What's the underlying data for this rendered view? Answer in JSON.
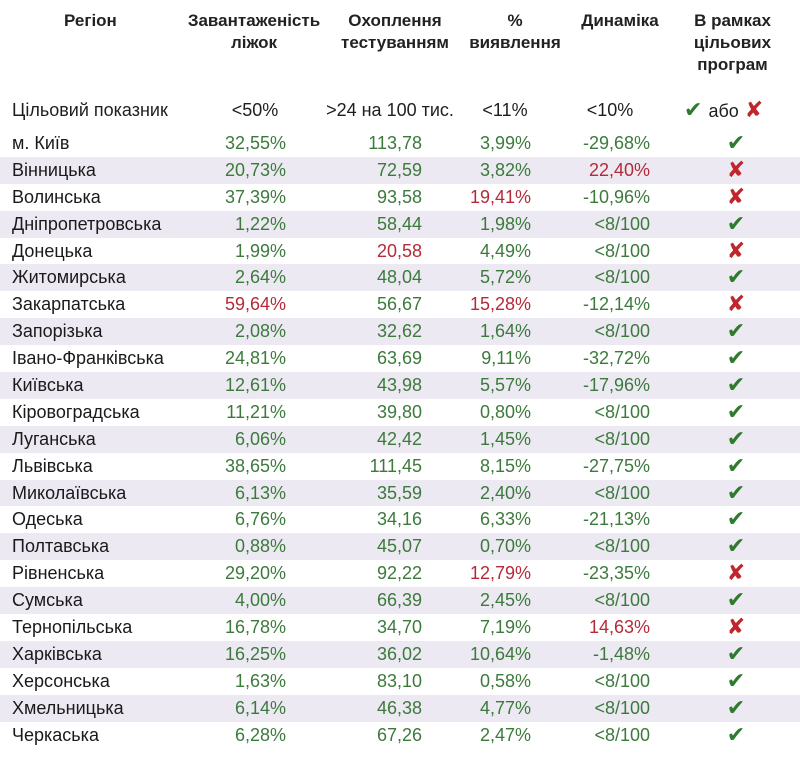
{
  "colors": {
    "good": "#3c7a3c",
    "bad": "#b52a38",
    "check": "#2f7a2f",
    "cross": "#c0262c",
    "shade": "#ece9f3"
  },
  "headers": {
    "region": "Регіон",
    "beds": [
      "Завантаженість",
      "ліжок"
    ],
    "testing": [
      "Охоплення",
      "тестуванням"
    ],
    "detection": [
      "%",
      "виявлення"
    ],
    "dynamics": "Динаміка",
    "program": [
      "В рамках",
      "цільових",
      "програм"
    ]
  },
  "target_row": {
    "label": "Цільовий показник",
    "beds": "<50%",
    "testing": ">24 на 100 тис.",
    "detection": "<11%",
    "dynamics": "<10%",
    "legend_check": "✔",
    "legend_or": "або",
    "legend_cross": "✘"
  },
  "rows": [
    {
      "region": "м. Київ",
      "beds": "32,55%",
      "beds_ok": true,
      "testing": "113,78",
      "testing_ok": true,
      "detection": "3,99%",
      "detection_ok": true,
      "dynamics": "-29,68%",
      "dynamics_ok": true,
      "in_program": true,
      "icon": "✔"
    },
    {
      "region": "Вінницька",
      "beds": "20,73%",
      "beds_ok": true,
      "testing": "72,59",
      "testing_ok": true,
      "detection": "3,82%",
      "detection_ok": true,
      "dynamics": "22,40%",
      "dynamics_ok": false,
      "in_program": false,
      "icon": "✘"
    },
    {
      "region": "Волинська",
      "beds": "37,39%",
      "beds_ok": true,
      "testing": "93,58",
      "testing_ok": true,
      "detection": "19,41%",
      "detection_ok": false,
      "dynamics": "-10,96%",
      "dynamics_ok": true,
      "in_program": false,
      "icon": "✘"
    },
    {
      "region": "Дніпропетровська",
      "beds": "1,22%",
      "beds_ok": true,
      "testing": "58,44",
      "testing_ok": true,
      "detection": "1,98%",
      "detection_ok": true,
      "dynamics": "<8/100",
      "dynamics_ok": true,
      "in_program": true,
      "icon": "✔"
    },
    {
      "region": "Донецька",
      "beds": "1,99%",
      "beds_ok": true,
      "testing": "20,58",
      "testing_ok": false,
      "detection": "4,49%",
      "detection_ok": true,
      "dynamics": "<8/100",
      "dynamics_ok": true,
      "in_program": false,
      "icon": "✘"
    },
    {
      "region": "Житомирська",
      "beds": "2,64%",
      "beds_ok": true,
      "testing": "48,04",
      "testing_ok": true,
      "detection": "5,72%",
      "detection_ok": true,
      "dynamics": "<8/100",
      "dynamics_ok": true,
      "in_program": true,
      "icon": "✔"
    },
    {
      "region": "Закарпатська",
      "beds": "59,64%",
      "beds_ok": false,
      "testing": "56,67",
      "testing_ok": true,
      "detection": "15,28%",
      "detection_ok": false,
      "dynamics": "-12,14%",
      "dynamics_ok": true,
      "in_program": false,
      "icon": "✘"
    },
    {
      "region": "Запорізька",
      "beds": "2,08%",
      "beds_ok": true,
      "testing": "32,62",
      "testing_ok": true,
      "detection": "1,64%",
      "detection_ok": true,
      "dynamics": "<8/100",
      "dynamics_ok": true,
      "in_program": true,
      "icon": "✔"
    },
    {
      "region": "Івано-Франківська",
      "beds": "24,81%",
      "beds_ok": true,
      "testing": "63,69",
      "testing_ok": true,
      "detection": "9,11%",
      "detection_ok": true,
      "dynamics": "-32,72%",
      "dynamics_ok": true,
      "in_program": true,
      "icon": "✔"
    },
    {
      "region": "Київська",
      "beds": "12,61%",
      "beds_ok": true,
      "testing": "43,98",
      "testing_ok": true,
      "detection": "5,57%",
      "detection_ok": true,
      "dynamics": "-17,96%",
      "dynamics_ok": true,
      "in_program": true,
      "icon": "✔"
    },
    {
      "region": "Кіровоградська",
      "beds": "11,21%",
      "beds_ok": true,
      "testing": "39,80",
      "testing_ok": true,
      "detection": "0,80%",
      "detection_ok": true,
      "dynamics": "<8/100",
      "dynamics_ok": true,
      "in_program": true,
      "icon": "✔"
    },
    {
      "region": "Луганська",
      "beds": "6,06%",
      "beds_ok": true,
      "testing": "42,42",
      "testing_ok": true,
      "detection": "1,45%",
      "detection_ok": true,
      "dynamics": "<8/100",
      "dynamics_ok": true,
      "in_program": true,
      "icon": "✔"
    },
    {
      "region": "Львівська",
      "beds": "38,65%",
      "beds_ok": true,
      "testing": "111,45",
      "testing_ok": true,
      "detection": "8,15%",
      "detection_ok": true,
      "dynamics": "-27,75%",
      "dynamics_ok": true,
      "in_program": true,
      "icon": "✔"
    },
    {
      "region": "Миколаївська",
      "beds": "6,13%",
      "beds_ok": true,
      "testing": "35,59",
      "testing_ok": true,
      "detection": "2,40%",
      "detection_ok": true,
      "dynamics": "<8/100",
      "dynamics_ok": true,
      "in_program": true,
      "icon": "✔"
    },
    {
      "region": "Одеська",
      "beds": "6,76%",
      "beds_ok": true,
      "testing": "34,16",
      "testing_ok": true,
      "detection": "6,33%",
      "detection_ok": true,
      "dynamics": "-21,13%",
      "dynamics_ok": true,
      "in_program": true,
      "icon": "✔"
    },
    {
      "region": "Полтавська",
      "beds": "0,88%",
      "beds_ok": true,
      "testing": "45,07",
      "testing_ok": true,
      "detection": "0,70%",
      "detection_ok": true,
      "dynamics": "<8/100",
      "dynamics_ok": true,
      "in_program": true,
      "icon": "✔"
    },
    {
      "region": "Рівненська",
      "beds": "29,20%",
      "beds_ok": true,
      "testing": "92,22",
      "testing_ok": true,
      "detection": "12,79%",
      "detection_ok": false,
      "dynamics": "-23,35%",
      "dynamics_ok": true,
      "in_program": false,
      "icon": "✘"
    },
    {
      "region": "Сумська",
      "beds": "4,00%",
      "beds_ok": true,
      "testing": "66,39",
      "testing_ok": true,
      "detection": "2,45%",
      "detection_ok": true,
      "dynamics": "<8/100",
      "dynamics_ok": true,
      "in_program": true,
      "icon": "✔"
    },
    {
      "region": "Тернопільська",
      "beds": "16,78%",
      "beds_ok": true,
      "testing": "34,70",
      "testing_ok": true,
      "detection": "7,19%",
      "detection_ok": true,
      "dynamics": "14,63%",
      "dynamics_ok": false,
      "in_program": false,
      "icon": "✘"
    },
    {
      "region": "Харківська",
      "beds": "16,25%",
      "beds_ok": true,
      "testing": "36,02",
      "testing_ok": true,
      "detection": "10,64%",
      "detection_ok": true,
      "dynamics": "-1,48%",
      "dynamics_ok": true,
      "in_program": true,
      "icon": "✔"
    },
    {
      "region": "Херсонська",
      "beds": "1,63%",
      "beds_ok": true,
      "testing": "83,10",
      "testing_ok": true,
      "detection": "0,58%",
      "detection_ok": true,
      "dynamics": "<8/100",
      "dynamics_ok": true,
      "in_program": true,
      "icon": "✔"
    },
    {
      "region": "Хмельницька",
      "beds": "6,14%",
      "beds_ok": true,
      "testing": "46,38",
      "testing_ok": true,
      "detection": "4,77%",
      "detection_ok": true,
      "dynamics": "<8/100",
      "dynamics_ok": true,
      "in_program": true,
      "icon": "✔"
    },
    {
      "region": "Черкаська",
      "beds": "6,28%",
      "beds_ok": true,
      "testing": "67,26",
      "testing_ok": true,
      "detection": "2,47%",
      "detection_ok": true,
      "dynamics": "<8/100",
      "dynamics_ok": true,
      "in_program": true,
      "icon": "✔"
    }
  ]
}
